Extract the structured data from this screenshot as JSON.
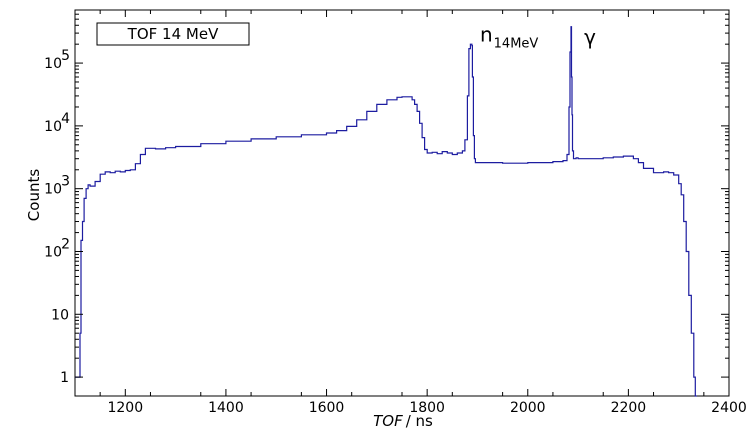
{
  "chart_data": {
    "type": "line",
    "legend_label": "TOF 14 MeV",
    "legend_position": "top-left",
    "xlabel_italic": "TOF",
    "xlabel_unit": "/ ns",
    "ylabel": "Counts",
    "xlim": [
      1100,
      2400
    ],
    "ylim": [
      0.5,
      700000
    ],
    "yscale": "log",
    "grid": false,
    "x_ticks": [
      1200,
      1400,
      1600,
      1800,
      2000,
      2200,
      2400
    ],
    "y_ticks": [
      {
        "value": 1,
        "label": "1",
        "power": ""
      },
      {
        "value": 10,
        "label": "10",
        "power": ""
      },
      {
        "value": 100,
        "label": "10",
        "power": "2"
      },
      {
        "value": 1000,
        "label": "10",
        "power": "3"
      },
      {
        "value": 10000,
        "label": "10",
        "power": "4"
      },
      {
        "value": 100000,
        "label": "10",
        "power": "5"
      }
    ],
    "annotations": [
      {
        "text": "n",
        "sub": "14MeV",
        "x": 1905,
        "y": 220000
      },
      {
        "text": "γ",
        "sub": "",
        "x": 2112,
        "y": 200000
      }
    ],
    "series": [
      {
        "color": "#1c1ca0",
        "x": [
          1100,
          1102,
          1106,
          1108,
          1110,
          1112,
          1115,
          1118,
          1122,
          1126,
          1130,
          1140,
          1150,
          1160,
          1170,
          1180,
          1190,
          1200,
          1210,
          1220,
          1230,
          1240,
          1260,
          1280,
          1300,
          1350,
          1400,
          1450,
          1500,
          1550,
          1600,
          1620,
          1640,
          1660,
          1680,
          1700,
          1720,
          1740,
          1750,
          1760,
          1770,
          1775,
          1780,
          1785,
          1790,
          1795,
          1800,
          1810,
          1820,
          1830,
          1840,
          1850,
          1860,
          1870,
          1875,
          1880,
          1883,
          1886,
          1889,
          1890,
          1892,
          1894,
          1896,
          1900,
          1910,
          1950,
          2000,
          2050,
          2070,
          2078,
          2082,
          2084,
          2086,
          2087,
          2088,
          2089,
          2091,
          2093,
          2096,
          2100,
          2150,
          2170,
          2190,
          2200,
          2210,
          2220,
          2230,
          2250,
          2270,
          2280,
          2290,
          2300,
          2305,
          2310,
          2315,
          2320,
          2325,
          2330,
          2333,
          2336
        ],
        "values": [
          1,
          1,
          1,
          1,
          5,
          150,
          300,
          700,
          1000,
          1150,
          1100,
          1300,
          1700,
          1850,
          1800,
          1900,
          1850,
          1950,
          2000,
          2500,
          3500,
          4400,
          4300,
          4500,
          4700,
          5200,
          5700,
          6200,
          6700,
          7200,
          7700,
          8400,
          9800,
          12500,
          17000,
          22000,
          26000,
          28500,
          29000,
          29000,
          26000,
          22000,
          17000,
          11000,
          6500,
          4200,
          3700,
          3800,
          3600,
          3900,
          3700,
          3500,
          3700,
          4000,
          6000,
          30000,
          170000,
          200000,
          190000,
          60000,
          7000,
          3000,
          2600,
          2600,
          2600,
          2550,
          2600,
          2700,
          2800,
          3500,
          20000,
          150000,
          380000,
          60000,
          15000,
          4000,
          3000,
          3000,
          3100,
          3000,
          3100,
          3200,
          3300,
          3300,
          3000,
          2600,
          2100,
          1800,
          1850,
          1800,
          1650,
          1200,
          800,
          300,
          100,
          20,
          5,
          1,
          0.5,
          0.5
        ]
      }
    ]
  }
}
